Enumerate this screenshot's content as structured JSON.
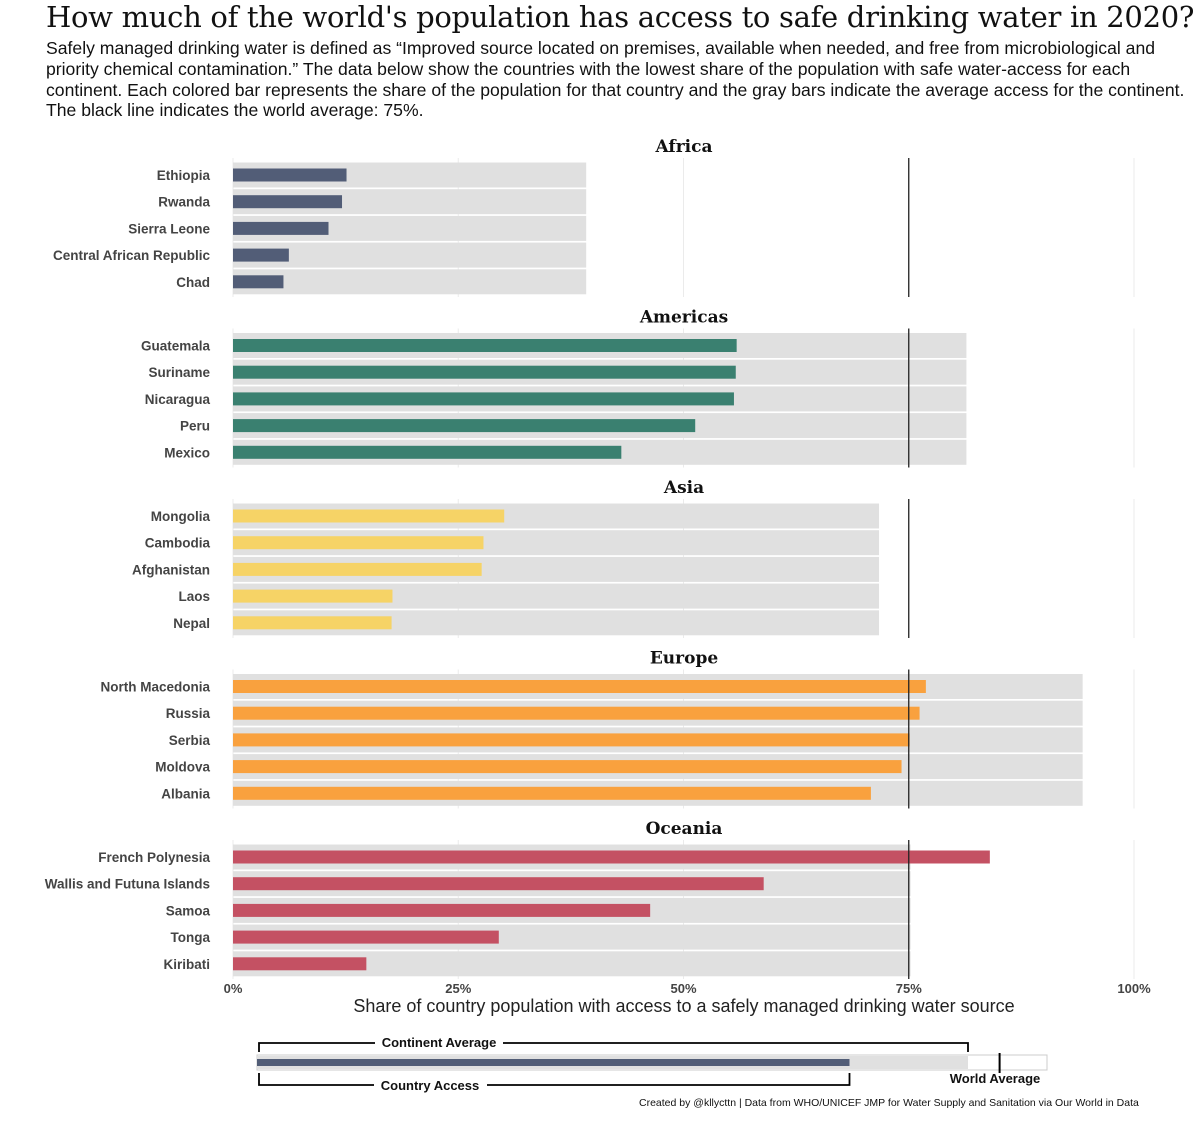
{
  "title": "How much of the world's population has access to safe drinking water in 2020?",
  "subtitle": "Safely managed drinking water is defined as “Improved source located on premises, available when needed, and free from microbiological and priority chemical contamination.” The data below show the countries with the lowest share of the population with safe water-access for each continent. Each colored bar represents the share of the population for that country and the gray bars indicate the average access for the continent. The black line indicates the world average: 75%.",
  "credit": "Created by @kllycttn | Data from WHO/UNICEF JMP for Water Supply and Sanitation via Our World in Data",
  "chart_data": {
    "type": "bar",
    "orientation": "horizontal",
    "xlabel": "Share of country population with access to a safely managed drinking water source",
    "xlim": [
      0,
      100
    ],
    "x_ticks": [
      0,
      25,
      50,
      75,
      100
    ],
    "x_tick_labels": [
      "0%",
      "25%",
      "50%",
      "75%",
      "100%"
    ],
    "world_average": 75,
    "grid": true,
    "panels": [
      {
        "name": "Africa",
        "color": "#525d77",
        "continent_average": 39.2,
        "countries": [
          {
            "name": "Ethiopia",
            "value": 12.6
          },
          {
            "name": "Rwanda",
            "value": 12.1
          },
          {
            "name": "Sierra Leone",
            "value": 10.6
          },
          {
            "name": "Central African Republic",
            "value": 6.2
          },
          {
            "name": "Chad",
            "value": 5.6
          }
        ]
      },
      {
        "name": "Americas",
        "color": "#3a8070",
        "continent_average": 81.4,
        "countries": [
          {
            "name": "Guatemala",
            "value": 55.9
          },
          {
            "name": "Suriname",
            "value": 55.8
          },
          {
            "name": "Nicaragua",
            "value": 55.6
          },
          {
            "name": "Peru",
            "value": 51.3
          },
          {
            "name": "Mexico",
            "value": 43.1
          }
        ]
      },
      {
        "name": "Asia",
        "color": "#f6d366",
        "continent_average": 71.7,
        "countries": [
          {
            "name": "Mongolia",
            "value": 30.1
          },
          {
            "name": "Cambodia",
            "value": 27.8
          },
          {
            "name": "Afghanistan",
            "value": 27.6
          },
          {
            "name": "Laos",
            "value": 17.7
          },
          {
            "name": "Nepal",
            "value": 17.6
          }
        ]
      },
      {
        "name": "Europe",
        "color": "#f9a13e",
        "continent_average": 94.3,
        "countries": [
          {
            "name": "North Macedonia",
            "value": 76.9
          },
          {
            "name": "Russia",
            "value": 76.2
          },
          {
            "name": "Serbia",
            "value": 75.1
          },
          {
            "name": "Moldova",
            "value": 74.2
          },
          {
            "name": "Albania",
            "value": 70.8
          }
        ]
      },
      {
        "name": "Oceania",
        "color": "#c45163",
        "continent_average": 75.2,
        "countries": [
          {
            "name": "French Polynesia",
            "value": 84.0
          },
          {
            "name": "Wallis and Futuna Islands",
            "value": 58.9
          },
          {
            "name": "Samoa",
            "value": 46.3
          },
          {
            "name": "Tonga",
            "value": 29.5
          },
          {
            "name": "Kiribati",
            "value": 14.8
          }
        ]
      }
    ]
  },
  "legend_key": {
    "continent_average_label": "Continent Average",
    "country_access_label": "Country Access",
    "world_average_label": "World Average",
    "example_continent_average": 90,
    "example_country_access": 75,
    "example_world_average": 94,
    "track_max": 100,
    "country_color": "#525d77"
  }
}
